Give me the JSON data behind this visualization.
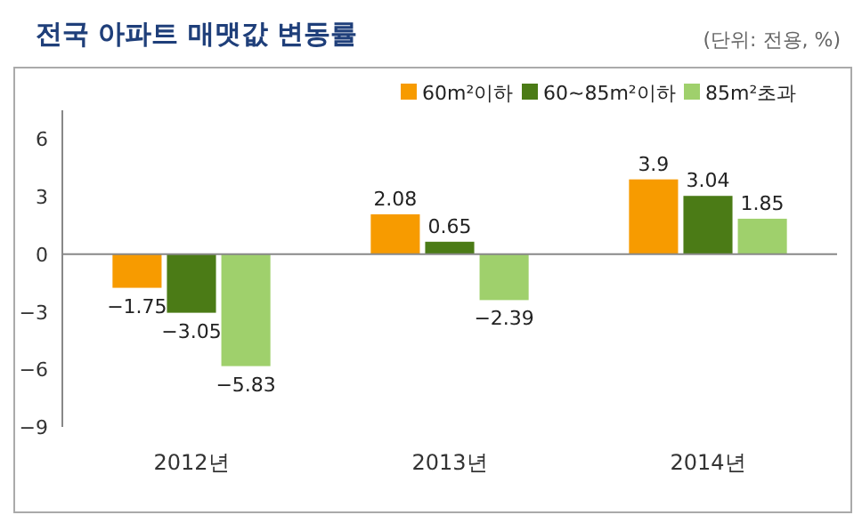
{
  "chart_data": {
    "type": "bar",
    "title": "전국 아파트 매맷값 변동률",
    "annotations": [
      "(단위: 전용, %)"
    ],
    "categories": [
      "2012년",
      "2013년",
      "2014년"
    ],
    "series": [
      {
        "name": "60m²이하",
        "color": "#f79b00",
        "values": [
          -1.75,
          2.08,
          3.9
        ]
      },
      {
        "name": "60~85m²이하",
        "color": "#4b7b16",
        "values": [
          -3.05,
          0.65,
          3.04
        ]
      },
      {
        "name": "85m²초과",
        "color": "#9fd06c",
        "values": [
          -5.83,
          -2.39,
          1.85
        ]
      }
    ],
    "ylim": [
      -9,
      7.5
    ],
    "yticks": [
      -9,
      -6,
      -3,
      0,
      3,
      6
    ],
    "data_labels": true,
    "legend": "top right"
  }
}
